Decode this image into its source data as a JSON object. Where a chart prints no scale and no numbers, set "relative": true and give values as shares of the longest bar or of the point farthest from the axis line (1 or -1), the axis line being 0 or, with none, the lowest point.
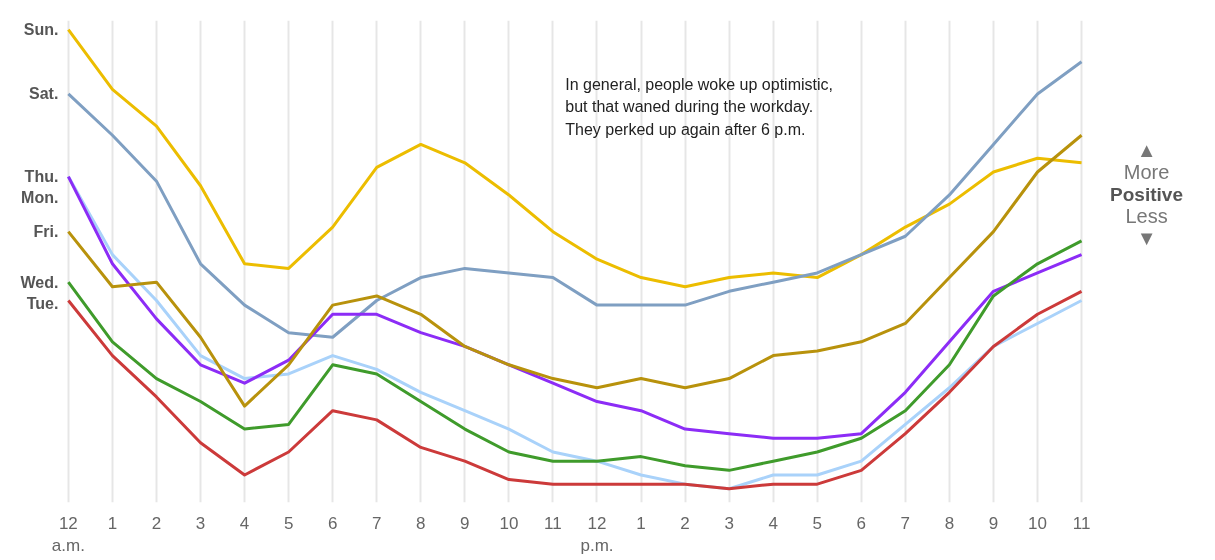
{
  "chart_data": {
    "type": "line",
    "relative": true,
    "grid": "x",
    "marker": "none",
    "line_style": "solid",
    "ylabel": "▲\nMore\nPositive\nLess\n▼",
    "annotations": [
      "In general, people woke up optimistic,\nbut that waned during the workday.\nThey perked up again after 6 p.m."
    ],
    "categories": [
      "12\na.m.",
      "1",
      "2",
      "3",
      "4",
      "5",
      "6",
      "7",
      "8",
      "9",
      "10",
      "11",
      "12\np.m.",
      "1",
      "2",
      "3",
      "4",
      "5",
      "6",
      "7",
      "8",
      "9",
      "10",
      "11"
    ],
    "series": [
      {
        "name": "Sun.",
        "color": "#ecbd00",
        "values": [
          1.0,
          0.87,
          0.79,
          0.66,
          0.49,
          0.48,
          0.57,
          0.7,
          0.75,
          0.71,
          0.64,
          0.56,
          0.5,
          0.46,
          0.44,
          0.46,
          0.47,
          0.46,
          0.51,
          0.57,
          0.62,
          0.69,
          0.72,
          0.71
        ]
      },
      {
        "name": "Sat.",
        "color": "#7f9fc2",
        "values": [
          0.86,
          0.77,
          0.67,
          0.49,
          0.4,
          0.34,
          0.33,
          0.41,
          0.46,
          0.48,
          0.47,
          0.46,
          0.4,
          0.4,
          0.4,
          0.43,
          0.45,
          0.47,
          0.51,
          0.55,
          0.64,
          0.75,
          0.86,
          0.93
        ]
      },
      {
        "name": "Thu.",
        "color": "#a9d2fa",
        "values": [
          0.68,
          0.51,
          0.41,
          0.29,
          0.24,
          0.25,
          0.29,
          0.26,
          0.21,
          0.17,
          0.13,
          0.08,
          0.06,
          0.03,
          0.01,
          0.0,
          0.03,
          0.03,
          0.06,
          0.14,
          0.22,
          0.31,
          0.36,
          0.41
        ]
      },
      {
        "name": "Mon.",
        "color": "#8c2cf6",
        "values": [
          0.68,
          0.49,
          0.37,
          0.27,
          0.23,
          0.28,
          0.38,
          0.38,
          0.34,
          0.31,
          0.27,
          0.23,
          0.19,
          0.17,
          0.13,
          0.12,
          0.11,
          0.11,
          0.12,
          0.21,
          0.32,
          0.43,
          0.47,
          0.51
        ]
      },
      {
        "name": "Fri.",
        "color": "#b8920c",
        "values": [
          0.56,
          0.44,
          0.45,
          0.33,
          0.18,
          0.27,
          0.4,
          0.42,
          0.38,
          0.31,
          0.27,
          0.24,
          0.22,
          0.24,
          0.22,
          0.24,
          0.29,
          0.3,
          0.32,
          0.36,
          0.46,
          0.56,
          0.69,
          0.77
        ]
      },
      {
        "name": "Wed.",
        "color": "#3f9b2b",
        "values": [
          0.45,
          0.32,
          0.24,
          0.19,
          0.13,
          0.14,
          0.27,
          0.25,
          0.19,
          0.13,
          0.08,
          0.06,
          0.06,
          0.07,
          0.05,
          0.04,
          0.06,
          0.08,
          0.11,
          0.17,
          0.27,
          0.42,
          0.49,
          0.54
        ]
      },
      {
        "name": "Tue.",
        "color": "#cc3a3a",
        "values": [
          0.41,
          0.29,
          0.2,
          0.1,
          0.03,
          0.08,
          0.17,
          0.15,
          0.09,
          0.06,
          0.02,
          0.01,
          0.01,
          0.01,
          0.01,
          0.0,
          0.01,
          0.01,
          0.04,
          0.12,
          0.21,
          0.31,
          0.38,
          0.43
        ]
      }
    ]
  }
}
